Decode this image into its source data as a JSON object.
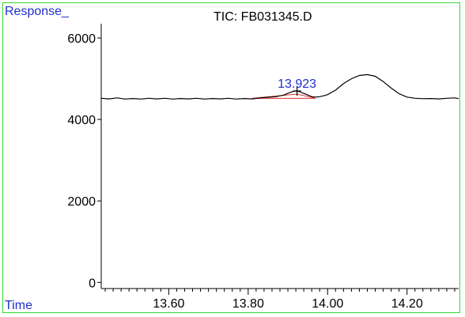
{
  "chart_data": {
    "type": "line",
    "title": "TIC: FB031345.D",
    "ylabel": "Response_",
    "xlabel": "Time",
    "xlim": [
      13.43,
      14.33
    ],
    "ylim": [
      -150,
      6350
    ],
    "yticks": [
      0,
      2000,
      4000,
      6000
    ],
    "ytick_labels": [
      "0",
      "2000",
      "4000",
      "6000"
    ],
    "xticks_major": [
      13.6,
      13.8,
      14.0,
      14.2
    ],
    "xtick_labels": [
      "13.60",
      "13.80",
      "14.00",
      "14.20"
    ],
    "series": [
      {
        "color": "#000000",
        "x": [
          13.43,
          13.45,
          13.47,
          13.49,
          13.51,
          13.53,
          13.55,
          13.57,
          13.59,
          13.61,
          13.63,
          13.65,
          13.67,
          13.69,
          13.71,
          13.73,
          13.75,
          13.77,
          13.79,
          13.81,
          13.83,
          13.85,
          13.87,
          13.89,
          13.9,
          13.91,
          13.92,
          13.93,
          13.94,
          13.95,
          13.96,
          13.97,
          13.98,
          13.99,
          14.0,
          14.02,
          14.04,
          14.06,
          14.08,
          14.1,
          14.12,
          14.14,
          14.16,
          14.18,
          14.2,
          14.22,
          14.24,
          14.26,
          14.28,
          14.3,
          14.32,
          14.33
        ],
        "values": [
          4520,
          4505,
          4530,
          4500,
          4515,
          4500,
          4520,
          4505,
          4520,
          4500,
          4515,
          4505,
          4520,
          4500,
          4515,
          4505,
          4520,
          4500,
          4515,
          4505,
          4530,
          4545,
          4560,
          4600,
          4640,
          4680,
          4700,
          4680,
          4640,
          4600,
          4560,
          4550,
          4560,
          4580,
          4610,
          4720,
          4880,
          5000,
          5080,
          5100,
          5060,
          4930,
          4770,
          4630,
          4550,
          4520,
          4510,
          4515,
          4505,
          4520,
          4530,
          4510
        ]
      }
    ],
    "annotations": [
      {
        "text": "13.923",
        "x": 13.923,
        "y": 4700
      }
    ],
    "integration_baseline": {
      "color": "#e03030",
      "x_start": 13.81,
      "x_end": 13.97,
      "y": 4520
    }
  }
}
